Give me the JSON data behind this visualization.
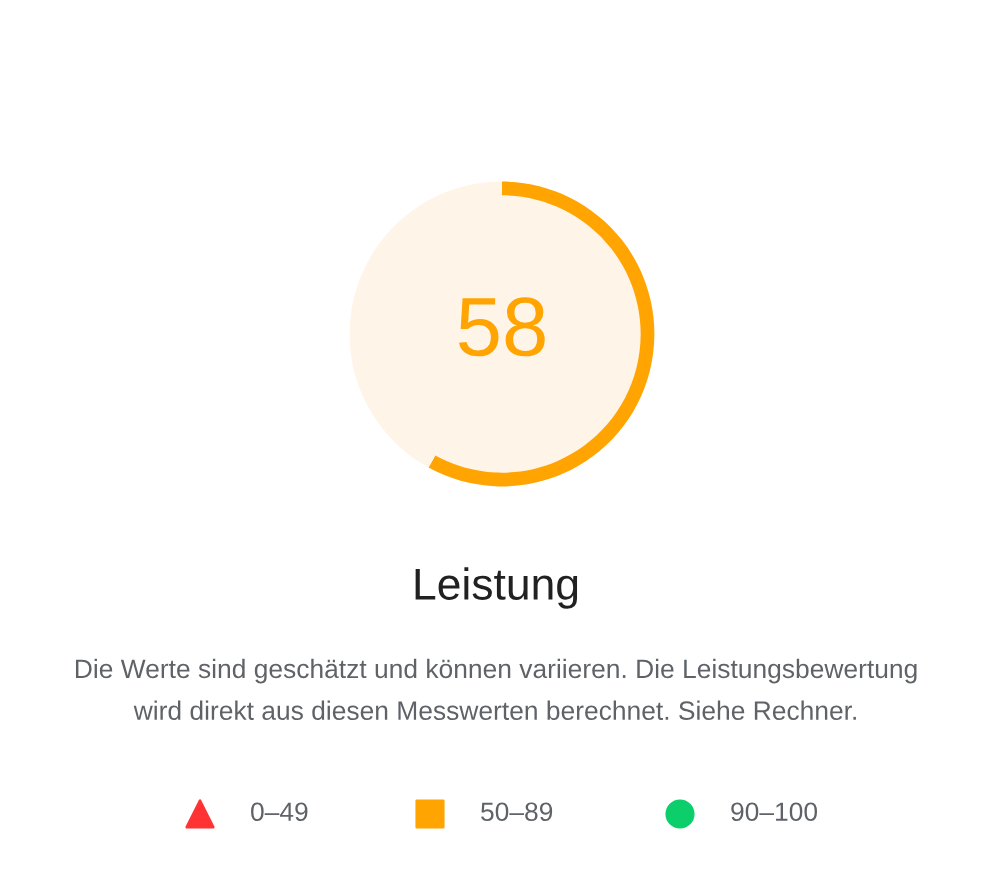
{
  "chart_data": {
    "type": "donut",
    "title": "Leistung",
    "categories": [
      null,
      null
    ],
    "values": [
      58,
      42
    ],
    "colors": [
      "#ffa400",
      "#fff4e8"
    ],
    "value_labels": [
      "58",
      null
    ],
    "annotations": [
      "Die Werte sind geschätzt und können variieren. Die Leistungsbewertung\nwird direkt aus diesen Messwerten berechnet. Siehe Rechner.",
      "0–49",
      "50–89",
      "90–100"
    ]
  }
}
